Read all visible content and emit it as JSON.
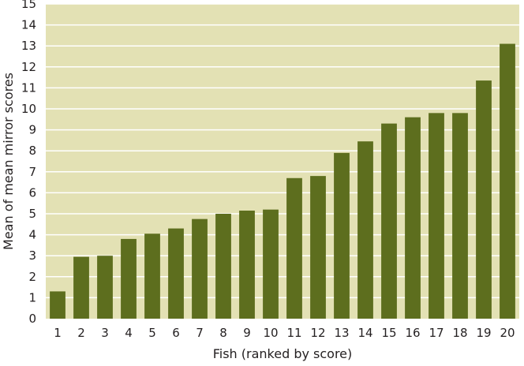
{
  "chart_data": {
    "type": "bar",
    "title": "",
    "xlabel": "Fish (ranked by score)",
    "ylabel": "Mean of mean mirror scores",
    "categories": [
      "1",
      "2",
      "3",
      "4",
      "5",
      "6",
      "7",
      "8",
      "9",
      "10",
      "11",
      "12",
      "13",
      "14",
      "15",
      "16",
      "17",
      "18",
      "19",
      "20"
    ],
    "values": [
      1.3,
      2.95,
      3.0,
      3.8,
      4.05,
      4.3,
      4.75,
      5.0,
      5.15,
      5.2,
      6.7,
      6.8,
      7.9,
      8.45,
      9.3,
      9.6,
      9.8,
      9.8,
      11.35,
      13.1
    ],
    "ylim": [
      0,
      15
    ],
    "yticks": [
      0,
      1,
      2,
      3,
      4,
      5,
      6,
      7,
      8,
      9,
      10,
      11,
      12,
      13,
      14,
      15
    ],
    "grid": true,
    "colors": {
      "bar": "#5d6e1e",
      "plot_background": "#e3e1b4",
      "gridline": "#ffffff",
      "text": "#231f20"
    }
  }
}
